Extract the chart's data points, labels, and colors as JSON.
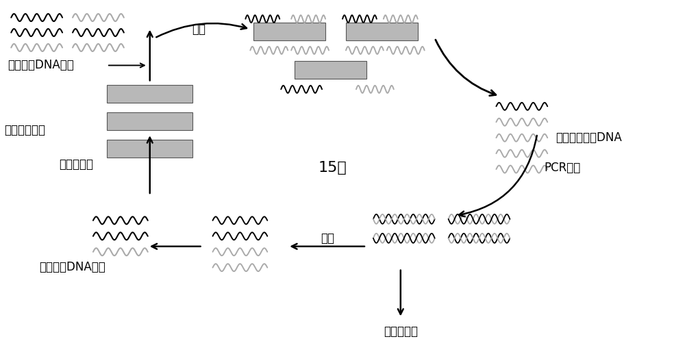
{
  "bg_color": "#ffffff",
  "gray_color": "#aaaaaa",
  "rect_color": "#b8b8b8",
  "labels": {
    "initial_lib": "初始单链DNA文库",
    "bacteria": "绿色魏斯氏菌",
    "incubate": "孵育",
    "rounds": "15轮",
    "unbound": "不结合的单链DNA",
    "pcr": "PCR扩增",
    "clone": "克隆、测序",
    "enzyme": "酶切",
    "next_round": "下一轮筛选",
    "secondary_lib": "次级单链DNA文库"
  },
  "font_size": 12
}
